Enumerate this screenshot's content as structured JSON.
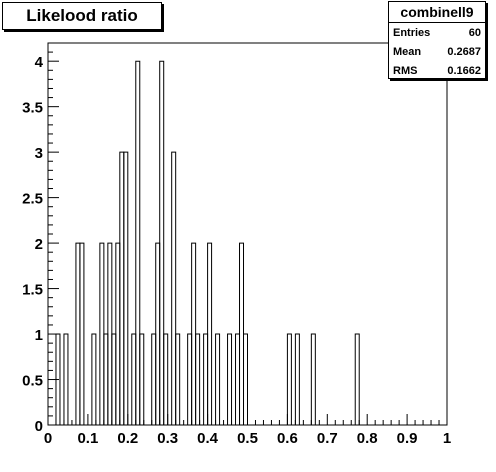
{
  "chart_data": {
    "type": "bar",
    "title": "Likelood ratio",
    "xlim": [
      0,
      1
    ],
    "ylim": [
      0,
      4.2
    ],
    "bins": 100,
    "grid": false,
    "x_ticks": [
      "0",
      "0.1",
      "0.2",
      "0.3",
      "0.4",
      "0.5",
      "0.6",
      "0.7",
      "0.8",
      "0.9",
      "1"
    ],
    "y_ticks": [
      "0",
      "0.5",
      "1",
      "1.5",
      "2",
      "2.5",
      "3",
      "3.5",
      "4"
    ],
    "values": [
      0,
      0,
      1,
      0,
      1,
      0,
      0,
      2,
      2,
      0,
      0,
      1,
      0,
      2,
      1,
      2,
      1,
      2,
      3,
      3,
      0,
      1,
      4,
      1,
      0,
      0,
      1,
      2,
      4,
      1,
      0,
      3,
      1,
      0,
      0,
      1,
      2,
      1,
      0,
      1,
      2,
      0,
      1,
      0,
      0,
      1,
      0,
      1,
      2,
      1,
      0,
      0,
      0,
      0,
      0,
      0,
      0,
      0,
      0,
      0,
      1,
      0,
      1,
      0,
      0,
      0,
      1,
      0,
      0,
      0,
      0,
      0,
      0,
      0,
      0,
      0,
      0,
      1,
      0,
      0,
      0,
      0,
      0,
      0,
      0,
      0,
      0,
      0,
      0,
      0,
      0,
      0,
      0,
      0,
      0,
      0,
      0,
      0,
      0,
      0
    ]
  },
  "stats_box": {
    "name": "combinell9",
    "rows": [
      {
        "label": "Entries",
        "value": "60"
      },
      {
        "label": "Mean",
        "value": "0.2687"
      },
      {
        "label": "RMS",
        "value": "0.1662"
      }
    ]
  }
}
